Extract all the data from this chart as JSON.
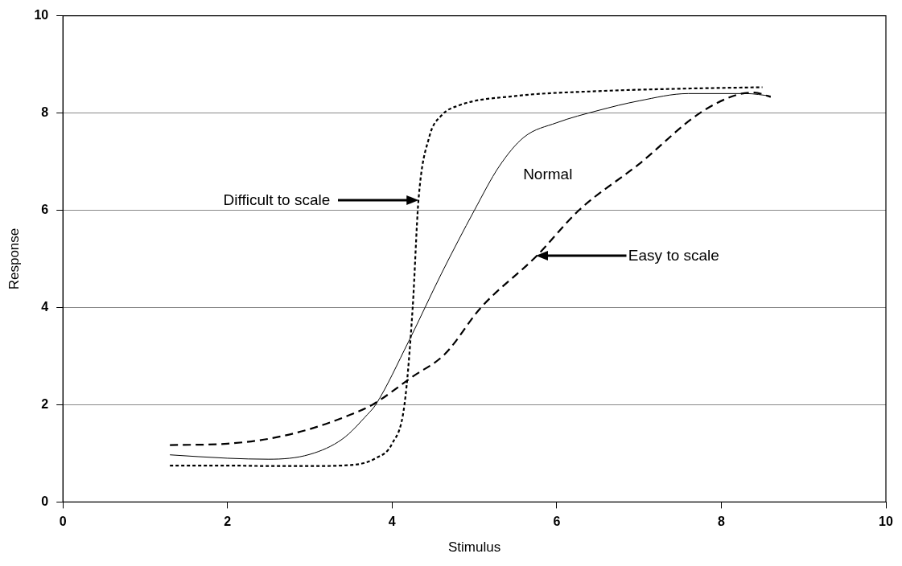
{
  "chart_data": {
    "type": "line",
    "xlabel": "Stimulus",
    "ylabel": "Response",
    "xlim": [
      0,
      10
    ],
    "xticks": [
      0,
      2,
      4,
      6,
      8,
      10
    ],
    "ylim": [
      0,
      10
    ],
    "yticks": [
      0,
      2,
      4,
      6,
      8,
      10
    ],
    "grid": "y",
    "legend": false,
    "marker": "none",
    "series": [
      {
        "color": "#000000",
        "line_style": "dotted",
        "x": [
          1.3,
          2.0,
          2.5,
          3.0,
          3.5,
          3.8,
          4.0,
          4.15,
          4.25,
          4.32,
          4.45,
          4.6,
          4.8,
          5.5,
          6.5,
          7.5,
          8.5
        ],
        "values": [
          0.75,
          0.75,
          0.74,
          0.74,
          0.76,
          0.9,
          1.2,
          2.0,
          4.0,
          6.2,
          7.5,
          7.95,
          8.15,
          8.35,
          8.45,
          8.5,
          8.53
        ]
      },
      {
        "color": "#000000",
        "line_style": "solid",
        "x": [
          1.3,
          2.0,
          2.5,
          3.0,
          3.4,
          3.7,
          3.8,
          4.2,
          4.6,
          5.0,
          5.3,
          5.6,
          6.0,
          6.5,
          7.0,
          7.6,
          8.3,
          8.6
        ],
        "values": [
          0.97,
          0.9,
          0.88,
          0.98,
          1.3,
          1.8,
          2.0,
          3.3,
          4.7,
          6.0,
          6.9,
          7.5,
          7.8,
          8.05,
          8.25,
          8.4,
          8.4,
          8.35
        ]
      },
      {
        "color": "#000000",
        "line_style": "dashed",
        "x": [
          1.3,
          2.0,
          2.5,
          3.0,
          3.5,
          3.76,
          4.25,
          4.64,
          5.08,
          5.75,
          6.27,
          7.0,
          7.74,
          8.2,
          8.4,
          8.6
        ],
        "values": [
          1.17,
          1.2,
          1.3,
          1.5,
          1.8,
          2.0,
          2.58,
          3.04,
          4.0,
          5.05,
          6.0,
          6.95,
          8.0,
          8.38,
          8.42,
          8.33
        ]
      }
    ],
    "annotations": [
      "Difficult to scale",
      "Normal",
      "Easy to scale"
    ]
  }
}
